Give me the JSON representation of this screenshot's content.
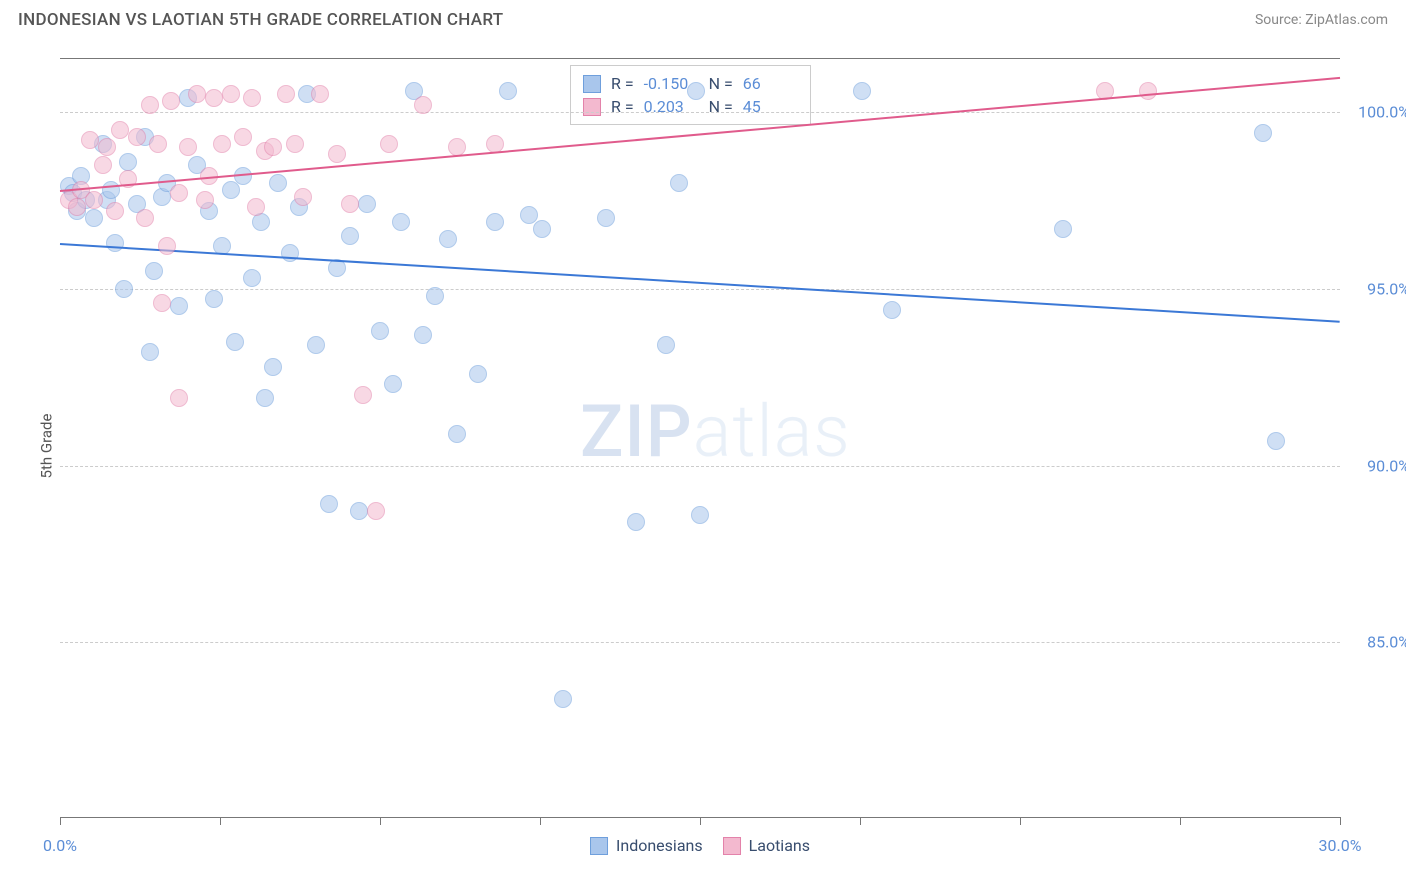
{
  "title": "INDONESIAN VS LAOTIAN 5TH GRADE CORRELATION CHART",
  "source": "Source: ZipAtlas.com",
  "ylabel": "5th Grade",
  "watermark": {
    "part1": "ZIP",
    "part2": "atlas"
  },
  "chart": {
    "type": "scatter",
    "xlim": [
      0,
      30
    ],
    "ylim": [
      80,
      101.5
    ],
    "y_gridlines": [
      85,
      90,
      95,
      100
    ],
    "y_tick_labels": [
      "85.0%",
      "90.0%",
      "95.0%",
      "100.0%"
    ],
    "x_ticks": [
      0,
      3.75,
      7.5,
      11.25,
      15,
      18.75,
      22.5,
      26.25,
      30
    ],
    "x_tick_labels": {
      "0": "0.0%",
      "30": "30.0%"
    },
    "grid_color": "#cccccc",
    "background_color": "#ffffff",
    "axis_color": "#777777",
    "point_radius": 9,
    "series": [
      {
        "name": "Indonesians",
        "fill": "#a9c6ec",
        "stroke": "#6f9fdc",
        "R": "-0.150",
        "N": "66",
        "trend": {
          "x1": 0,
          "y1": 96.3,
          "x2": 30,
          "y2": 94.1,
          "color": "#3b78d6"
        },
        "points": [
          [
            0.2,
            97.9
          ],
          [
            0.3,
            97.7
          ],
          [
            0.4,
            97.2
          ],
          [
            0.5,
            98.2
          ],
          [
            0.6,
            97.5
          ],
          [
            0.8,
            97.0
          ],
          [
            1.0,
            99.1
          ],
          [
            1.1,
            97.5
          ],
          [
            1.2,
            97.8
          ],
          [
            1.3,
            96.3
          ],
          [
            1.5,
            95.0
          ],
          [
            1.6,
            98.6
          ],
          [
            1.8,
            97.4
          ],
          [
            2.0,
            99.3
          ],
          [
            2.1,
            93.2
          ],
          [
            2.2,
            95.5
          ],
          [
            2.4,
            97.6
          ],
          [
            2.5,
            98.0
          ],
          [
            2.8,
            94.5
          ],
          [
            3.0,
            100.4
          ],
          [
            3.2,
            98.5
          ],
          [
            3.5,
            97.2
          ],
          [
            3.6,
            94.7
          ],
          [
            3.8,
            96.2
          ],
          [
            4.0,
            97.8
          ],
          [
            4.1,
            93.5
          ],
          [
            4.3,
            98.2
          ],
          [
            4.5,
            95.3
          ],
          [
            4.7,
            96.9
          ],
          [
            5.0,
            92.8
          ],
          [
            5.1,
            98.0
          ],
          [
            5.4,
            96.0
          ],
          [
            5.6,
            97.3
          ],
          [
            5.8,
            100.5
          ],
          [
            6.0,
            93.4
          ],
          [
            6.3,
            88.9
          ],
          [
            6.5,
            95.6
          ],
          [
            6.8,
            96.5
          ],
          [
            7.0,
            88.7
          ],
          [
            7.2,
            97.4
          ],
          [
            7.5,
            93.8
          ],
          [
            7.8,
            92.3
          ],
          [
            8.0,
            96.9
          ],
          [
            8.3,
            100.6
          ],
          [
            8.5,
            93.7
          ],
          [
            8.8,
            94.8
          ],
          [
            9.1,
            96.4
          ],
          [
            9.3,
            90.9
          ],
          [
            9.8,
            92.6
          ],
          [
            10.2,
            96.9
          ],
          [
            10.5,
            100.6
          ],
          [
            11.0,
            97.1
          ],
          [
            11.3,
            96.7
          ],
          [
            11.8,
            83.4
          ],
          [
            12.8,
            97.0
          ],
          [
            13.5,
            88.4
          ],
          [
            14.5,
            98.0
          ],
          [
            14.9,
            100.6
          ],
          [
            15.0,
            88.6
          ],
          [
            14.2,
            93.4
          ],
          [
            18.8,
            100.6
          ],
          [
            19.5,
            94.4
          ],
          [
            23.5,
            96.7
          ],
          [
            28.2,
            99.4
          ],
          [
            28.5,
            90.7
          ],
          [
            4.8,
            91.9
          ]
        ]
      },
      {
        "name": "Laotians",
        "fill": "#f3b9cf",
        "stroke": "#e382aa",
        "R": "0.203",
        "N": "45",
        "trend": {
          "x1": 0,
          "y1": 97.8,
          "x2": 30,
          "y2": 101.0,
          "color": "#e05b8c"
        },
        "points": [
          [
            0.2,
            97.5
          ],
          [
            0.4,
            97.3
          ],
          [
            0.5,
            97.8
          ],
          [
            0.7,
            99.2
          ],
          [
            0.8,
            97.5
          ],
          [
            1.0,
            98.5
          ],
          [
            1.1,
            99.0
          ],
          [
            1.3,
            97.2
          ],
          [
            1.4,
            99.5
          ],
          [
            1.6,
            98.1
          ],
          [
            1.8,
            99.3
          ],
          [
            2.0,
            97.0
          ],
          [
            2.1,
            100.2
          ],
          [
            2.3,
            99.1
          ],
          [
            2.5,
            96.2
          ],
          [
            2.6,
            100.3
          ],
          [
            2.8,
            97.7
          ],
          [
            2.8,
            91.9
          ],
          [
            3.0,
            99.0
          ],
          [
            3.2,
            100.5
          ],
          [
            3.4,
            97.5
          ],
          [
            3.5,
            98.2
          ],
          [
            3.6,
            100.4
          ],
          [
            3.8,
            99.1
          ],
          [
            4.0,
            100.5
          ],
          [
            4.3,
            99.3
          ],
          [
            4.5,
            100.4
          ],
          [
            4.6,
            97.3
          ],
          [
            4.8,
            98.9
          ],
          [
            5.0,
            99.0
          ],
          [
            5.3,
            100.5
          ],
          [
            5.5,
            99.1
          ],
          [
            5.7,
            97.6
          ],
          [
            6.1,
            100.5
          ],
          [
            6.5,
            98.8
          ],
          [
            6.8,
            97.4
          ],
          [
            7.1,
            92.0
          ],
          [
            7.4,
            88.7
          ],
          [
            7.7,
            99.1
          ],
          [
            8.5,
            100.2
          ],
          [
            9.3,
            99.0
          ],
          [
            10.2,
            99.1
          ],
          [
            24.5,
            100.6
          ],
          [
            25.5,
            100.6
          ],
          [
            2.4,
            94.6
          ]
        ]
      }
    ]
  },
  "stats_box": {
    "rows": [
      {
        "swatch_fill": "#a9c6ec",
        "swatch_stroke": "#6f9fdc",
        "r_label": "R =",
        "r_val": "-0.150",
        "n_label": "N =",
        "n_val": "66"
      },
      {
        "swatch_fill": "#f3b9cf",
        "swatch_stroke": "#e382aa",
        "r_label": "R =",
        "r_val": "0.203",
        "n_label": "N =",
        "n_val": "45"
      }
    ]
  },
  "bottom_legend": [
    {
      "swatch_fill": "#a9c6ec",
      "swatch_stroke": "#6f9fdc",
      "label": "Indonesians"
    },
    {
      "swatch_fill": "#f3b9cf",
      "swatch_stroke": "#e382aa",
      "label": "Laotians"
    }
  ]
}
